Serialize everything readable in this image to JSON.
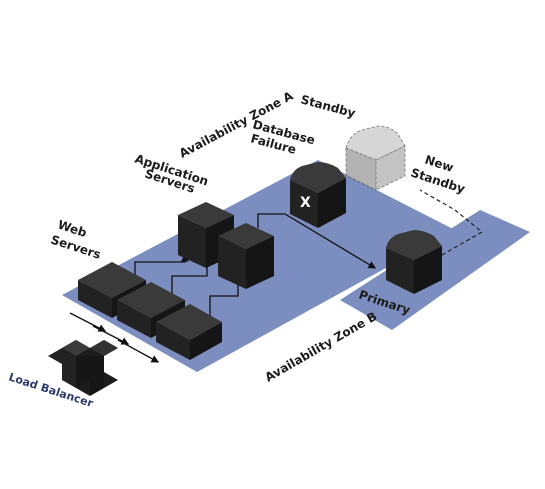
{
  "labels": {
    "zone_a": "Availability Zone A",
    "zone_b": "Availability Zone B",
    "standby": "Standby",
    "new_standby_line1": "New",
    "new_standby_line2": "Standby",
    "db_failure_line1": "Database",
    "db_failure_line2": "Failure",
    "app_servers_line1": "Application",
    "app_servers_line2": "Servers",
    "web_servers_line1": "Web",
    "web_servers_line2": "Servers",
    "primary": "Primary",
    "load_balancer": "Load Balancer",
    "failed_marker": "X"
  },
  "colors": {
    "zone": "#7b8ebf",
    "cube_top": "#3a3a3a",
    "cube_left": "#222222",
    "cube_right": "#151515",
    "ghost": "#bdbdbd",
    "load_balancer_text": "#2e3a6e"
  }
}
